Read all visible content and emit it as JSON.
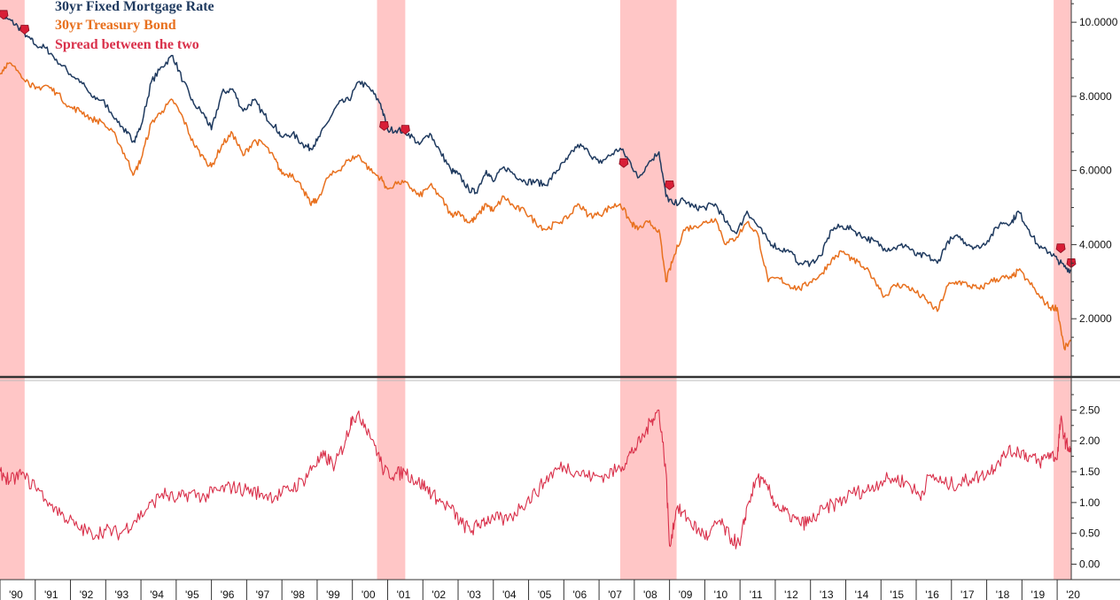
{
  "chart_data": [
    {
      "type": "line",
      "panel": "top",
      "title": "",
      "xlabel": "",
      "ylabel": "",
      "xlim": [
        1990.0,
        2020.4
      ],
      "ylim": [
        0.5,
        10.6
      ],
      "y_ticks": [
        2,
        4,
        6,
        8,
        10
      ],
      "y_tick_labels": [
        "2.0000",
        "4.0000",
        "6.0000",
        "8.0000",
        "10.0000"
      ],
      "grid": false,
      "legend_position": "top-left",
      "series": [
        {
          "name": "30yr Fixed Mortgage Rate",
          "color": "#1f3a5f",
          "x": [
            1990.0,
            1990.2,
            1990.5,
            1990.8,
            1991.0,
            1991.3,
            1991.6,
            1992.0,
            1992.3,
            1992.6,
            1992.9,
            1993.3,
            1993.6,
            1993.8,
            1994.0,
            1994.3,
            1994.6,
            1994.9,
            1995.2,
            1995.5,
            1995.8,
            1996.0,
            1996.3,
            1996.6,
            1996.9,
            1997.2,
            1997.5,
            1997.8,
            1998.0,
            1998.3,
            1998.6,
            1998.8,
            1999.0,
            1999.3,
            1999.6,
            1999.9,
            2000.2,
            2000.5,
            2000.8,
            2001.0,
            2001.3,
            2001.6,
            2001.9,
            2002.2,
            2002.5,
            2002.8,
            2003.0,
            2003.3,
            2003.5,
            2003.8,
            2004.0,
            2004.3,
            2004.6,
            2004.9,
            2005.2,
            2005.5,
            2005.8,
            2006.1,
            2006.4,
            2006.7,
            2007.0,
            2007.3,
            2007.6,
            2007.9,
            2008.1,
            2008.4,
            2008.7,
            2008.9,
            2009.1,
            2009.4,
            2009.7,
            2010.0,
            2010.3,
            2010.6,
            2010.9,
            2011.2,
            2011.5,
            2011.8,
            2012.1,
            2012.4,
            2012.7,
            2013.0,
            2013.3,
            2013.6,
            2013.9,
            2014.2,
            2014.5,
            2014.8,
            2015.1,
            2015.4,
            2015.7,
            2016.0,
            2016.3,
            2016.6,
            2016.9,
            2017.2,
            2017.5,
            2017.8,
            2018.1,
            2018.4,
            2018.7,
            2018.9,
            2019.2,
            2019.5,
            2019.8,
            2020.0,
            2020.2,
            2020.4
          ],
          "y": [
            10.2,
            10.1,
            9.9,
            9.6,
            9.4,
            9.3,
            9.0,
            8.6,
            8.4,
            8.0,
            7.9,
            7.4,
            7.0,
            6.8,
            7.2,
            8.4,
            8.8,
            9.1,
            8.4,
            7.8,
            7.5,
            7.1,
            8.1,
            8.2,
            7.6,
            7.9,
            7.5,
            7.2,
            6.9,
            7.0,
            6.7,
            6.6,
            6.8,
            7.3,
            7.8,
            7.9,
            8.4,
            8.2,
            7.8,
            7.1,
            7.1,
            7.0,
            6.7,
            7.0,
            6.5,
            6.0,
            5.9,
            5.5,
            5.4,
            6.0,
            5.7,
            6.1,
            5.9,
            5.7,
            5.7,
            5.6,
            6.0,
            6.3,
            6.7,
            6.5,
            6.2,
            6.4,
            6.6,
            6.2,
            5.8,
            6.2,
            6.5,
            5.3,
            5.1,
            5.2,
            5.0,
            5.0,
            5.1,
            4.6,
            4.3,
            4.9,
            4.5,
            4.1,
            3.9,
            3.8,
            3.5,
            3.5,
            3.7,
            4.4,
            4.5,
            4.4,
            4.2,
            4.1,
            3.9,
            3.9,
            4.0,
            3.7,
            3.7,
            3.5,
            4.1,
            4.2,
            4.0,
            3.9,
            4.2,
            4.6,
            4.6,
            4.9,
            4.4,
            3.9,
            3.8,
            3.6,
            3.4,
            3.3
          ]
        },
        {
          "name": "30yr Treasury Bond",
          "color": "#e8701e",
          "x": [
            1990.0,
            1990.2,
            1990.5,
            1990.8,
            1991.0,
            1991.3,
            1991.6,
            1992.0,
            1992.3,
            1992.6,
            1992.9,
            1993.3,
            1993.6,
            1993.8,
            1994.0,
            1994.3,
            1994.6,
            1994.9,
            1995.2,
            1995.5,
            1995.8,
            1996.0,
            1996.3,
            1996.6,
            1996.9,
            1997.2,
            1997.5,
            1997.8,
            1998.0,
            1998.3,
            1998.6,
            1998.8,
            1999.0,
            1999.3,
            1999.6,
            1999.9,
            2000.2,
            2000.5,
            2000.8,
            2001.0,
            2001.3,
            2001.6,
            2001.9,
            2002.2,
            2002.5,
            2002.8,
            2003.0,
            2003.3,
            2003.5,
            2003.8,
            2004.0,
            2004.3,
            2004.6,
            2004.9,
            2005.2,
            2005.5,
            2005.8,
            2006.1,
            2006.4,
            2006.7,
            2007.0,
            2007.3,
            2007.6,
            2007.9,
            2008.1,
            2008.4,
            2008.7,
            2008.9,
            2009.1,
            2009.4,
            2009.7,
            2010.0,
            2010.3,
            2010.6,
            2010.9,
            2011.2,
            2011.5,
            2011.8,
            2012.1,
            2012.4,
            2012.7,
            2013.0,
            2013.3,
            2013.6,
            2013.9,
            2014.2,
            2014.5,
            2014.8,
            2015.1,
            2015.4,
            2015.7,
            2016.0,
            2016.3,
            2016.6,
            2016.9,
            2017.2,
            2017.5,
            2017.8,
            2018.1,
            2018.4,
            2018.7,
            2018.9,
            2019.2,
            2019.5,
            2019.8,
            2020.0,
            2020.2,
            2020.4
          ],
          "y": [
            8.6,
            8.9,
            8.7,
            8.4,
            8.2,
            8.3,
            8.1,
            7.7,
            7.6,
            7.4,
            7.3,
            6.9,
            6.3,
            5.9,
            6.3,
            7.3,
            7.6,
            7.9,
            7.4,
            6.7,
            6.3,
            6.1,
            6.7,
            7.0,
            6.4,
            6.8,
            6.7,
            6.3,
            5.9,
            5.9,
            5.5,
            5.1,
            5.2,
            5.8,
            6.0,
            6.3,
            6.4,
            6.0,
            5.8,
            5.5,
            5.7,
            5.6,
            5.3,
            5.6,
            5.3,
            4.8,
            4.9,
            4.6,
            4.7,
            5.1,
            4.9,
            5.3,
            5.0,
            4.9,
            4.6,
            4.4,
            4.6,
            4.7,
            5.1,
            4.8,
            4.8,
            5.0,
            5.1,
            4.6,
            4.4,
            4.6,
            4.4,
            3.0,
            3.6,
            4.4,
            4.5,
            4.6,
            4.7,
            4.0,
            4.2,
            4.6,
            4.3,
            3.0,
            3.1,
            2.9,
            2.8,
            3.0,
            3.2,
            3.6,
            3.8,
            3.6,
            3.4,
            3.1,
            2.6,
            2.9,
            2.9,
            2.7,
            2.5,
            2.2,
            2.9,
            3.0,
            2.9,
            2.8,
            3.0,
            3.1,
            3.1,
            3.3,
            3.0,
            2.6,
            2.3,
            2.3,
            1.2,
            1.4
          ]
        }
      ],
      "annotations": [
        {
          "x": 1990.1,
          "y": 10.2
        },
        {
          "x": 1990.7,
          "y": 9.8
        },
        {
          "x": 2000.9,
          "y": 7.2
        },
        {
          "x": 2001.5,
          "y": 7.1
        },
        {
          "x": 2007.7,
          "y": 6.2
        },
        {
          "x": 2009.0,
          "y": 5.6
        },
        {
          "x": 2020.1,
          "y": 3.9
        },
        {
          "x": 2020.4,
          "y": 3.5
        }
      ]
    },
    {
      "type": "line",
      "panel": "bottom",
      "title": "",
      "xlabel": "",
      "ylabel": "",
      "xlim": [
        1990.0,
        2020.4
      ],
      "ylim": [
        -0.15,
        2.95
      ],
      "y_ticks": [
        0,
        0.5,
        1,
        1.5,
        2,
        2.5
      ],
      "y_tick_labels": [
        "0.00",
        "0.50",
        "1.00",
        "1.50",
        "2.00",
        "2.50"
      ],
      "grid": false,
      "series": [
        {
          "name": "Spread between the two",
          "color": "#d9304a",
          "x": [
            1990.0,
            1990.3,
            1990.6,
            1991.0,
            1991.4,
            1991.8,
            1992.2,
            1992.6,
            1993.0,
            1993.4,
            1993.8,
            1994.2,
            1994.6,
            1995.0,
            1995.4,
            1995.8,
            1996.2,
            1996.6,
            1997.0,
            1997.4,
            1997.8,
            1998.2,
            1998.6,
            1998.9,
            1999.2,
            1999.5,
            1999.8,
            2000.0,
            2000.3,
            2000.6,
            2000.9,
            2001.2,
            2001.5,
            2001.8,
            2002.1,
            2002.4,
            2002.8,
            2003.1,
            2003.4,
            2003.7,
            2004.0,
            2004.4,
            2004.8,
            2005.2,
            2005.6,
            2006.0,
            2006.4,
            2006.8,
            2007.2,
            2007.6,
            2007.9,
            2008.2,
            2008.5,
            2008.7,
            2008.9,
            2009.0,
            2009.2,
            2009.5,
            2009.8,
            2010.1,
            2010.4,
            2010.7,
            2011.0,
            2011.2,
            2011.5,
            2011.8,
            2012.1,
            2012.4,
            2012.7,
            2013.0,
            2013.4,
            2013.8,
            2014.2,
            2014.6,
            2015.0,
            2015.4,
            2015.8,
            2016.1,
            2016.4,
            2016.8,
            2017.2,
            2017.6,
            2018.0,
            2018.3,
            2018.6,
            2018.9,
            2019.2,
            2019.5,
            2019.8,
            2020.0,
            2020.1,
            2020.25,
            2020.4
          ],
          "y": [
            1.5,
            1.35,
            1.45,
            1.25,
            1.0,
            0.8,
            0.6,
            0.5,
            0.55,
            0.5,
            0.7,
            0.9,
            1.15,
            1.05,
            1.15,
            1.1,
            1.2,
            1.25,
            1.2,
            1.15,
            1.1,
            1.2,
            1.35,
            1.6,
            1.75,
            1.6,
            2.0,
            2.4,
            2.35,
            2.0,
            1.5,
            1.45,
            1.5,
            1.35,
            1.25,
            1.05,
            0.9,
            0.65,
            0.55,
            0.7,
            0.75,
            0.7,
            0.95,
            1.15,
            1.45,
            1.6,
            1.5,
            1.4,
            1.45,
            1.55,
            1.8,
            2.0,
            2.35,
            2.5,
            1.5,
            0.3,
            0.9,
            0.75,
            0.55,
            0.45,
            0.7,
            0.45,
            0.3,
            0.95,
            1.4,
            1.2,
            0.9,
            0.8,
            0.65,
            0.7,
            0.9,
            1.0,
            1.15,
            1.2,
            1.35,
            1.4,
            1.3,
            1.1,
            1.45,
            1.3,
            1.3,
            1.4,
            1.45,
            1.65,
            1.8,
            1.85,
            1.75,
            1.65,
            1.8,
            1.7,
            2.35,
            1.95,
            1.85
          ]
        }
      ]
    }
  ],
  "recessions": [
    [
      1990.0,
      1990.7
    ],
    [
      2000.7,
      2001.5
    ],
    [
      2007.6,
      2009.2
    ],
    [
      2019.9,
      2020.4
    ]
  ],
  "x_tick_labels": [
    {
      "x": 1990.0,
      "label": "'90"
    },
    {
      "x": 1991.0,
      "label": "'91"
    },
    {
      "x": 1992.0,
      "label": "'92"
    },
    {
      "x": 1993.0,
      "label": "'93"
    },
    {
      "x": 1994.0,
      "label": "'94"
    },
    {
      "x": 1995.0,
      "label": "'95"
    },
    {
      "x": 1996.0,
      "label": "'96"
    },
    {
      "x": 1997.0,
      "label": "'97"
    },
    {
      "x": 1998.0,
      "label": "'98"
    },
    {
      "x": 1999.0,
      "label": "'99"
    },
    {
      "x": 2000.0,
      "label": "'00"
    },
    {
      "x": 2001.0,
      "label": "'01"
    },
    {
      "x": 2002.0,
      "label": "'02"
    },
    {
      "x": 2003.0,
      "label": "'03"
    },
    {
      "x": 2004.0,
      "label": "'04"
    },
    {
      "x": 2005.0,
      "label": "'05"
    },
    {
      "x": 2006.0,
      "label": "'06"
    },
    {
      "x": 2007.0,
      "label": "'07"
    },
    {
      "x": 2008.0,
      "label": "'08"
    },
    {
      "x": 2009.0,
      "label": "'09"
    },
    {
      "x": 2010.0,
      "label": "'10"
    },
    {
      "x": 2011.0,
      "label": "'11"
    },
    {
      "x": 2012.0,
      "label": "'12"
    },
    {
      "x": 2013.0,
      "label": "'13"
    },
    {
      "x": 2014.0,
      "label": "'14"
    },
    {
      "x": 2015.0,
      "label": "'15"
    },
    {
      "x": 2016.0,
      "label": "'16"
    },
    {
      "x": 2017.0,
      "label": "'17"
    },
    {
      "x": 2018.0,
      "label": "'18"
    },
    {
      "x": 2019.0,
      "label": "'19"
    },
    {
      "x": 2020.0,
      "label": "'20"
    }
  ],
  "colors": {
    "mortgage": "#1f3a5f",
    "treasury": "#e8701e",
    "spread": "#d9304a",
    "recession_band": "#ffb3b3",
    "marker": "#d81e36",
    "divider": "#333333",
    "axis": "#333333"
  }
}
